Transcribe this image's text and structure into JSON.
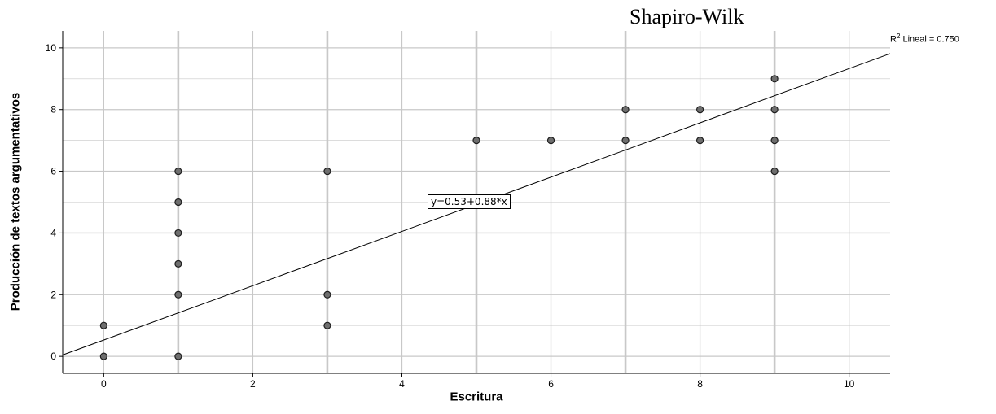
{
  "header_text": "Shapiro-Wilk",
  "r2_label": {
    "prefix": "R",
    "sup": "2",
    "suffix": " Lineal = 0.750"
  },
  "chart_data": {
    "type": "scatter",
    "title": "",
    "xlabel": "Escritura",
    "ylabel": "Producción de textos argumentativos",
    "xlim": [
      -0.55,
      10.55
    ],
    "ylim": [
      -0.55,
      10.55
    ],
    "x_ticks": [
      0,
      2,
      4,
      6,
      8,
      10
    ],
    "y_ticks": [
      0,
      2,
      4,
      6,
      8,
      10
    ],
    "x_gridlines": [
      0,
      1,
      2,
      3,
      4,
      5,
      6,
      7,
      8,
      9,
      10
    ],
    "y_gridlines": [
      0,
      1,
      2,
      3,
      4,
      5,
      6,
      7,
      8,
      9,
      10
    ],
    "grid": true,
    "points": [
      {
        "x": 0,
        "y": 0
      },
      {
        "x": 0,
        "y": 1
      },
      {
        "x": 1,
        "y": 0
      },
      {
        "x": 1,
        "y": 2
      },
      {
        "x": 1,
        "y": 3
      },
      {
        "x": 1,
        "y": 4
      },
      {
        "x": 1,
        "y": 5
      },
      {
        "x": 1,
        "y": 6
      },
      {
        "x": 3,
        "y": 1
      },
      {
        "x": 3,
        "y": 2
      },
      {
        "x": 3,
        "y": 6
      },
      {
        "x": 5,
        "y": 7
      },
      {
        "x": 6,
        "y": 7
      },
      {
        "x": 7,
        "y": 7
      },
      {
        "x": 7,
        "y": 8
      },
      {
        "x": 8,
        "y": 7
      },
      {
        "x": 8,
        "y": 8
      },
      {
        "x": 9,
        "y": 6
      },
      {
        "x": 9,
        "y": 7
      },
      {
        "x": 9,
        "y": 8
      },
      {
        "x": 9,
        "y": 9
      }
    ],
    "fit_line": {
      "intercept": 0.53,
      "slope": 0.88,
      "label": "y=0.53+0.88*x",
      "label_at": [
        5.0,
        5.0
      ]
    },
    "r_squared": 0.75,
    "colors": {
      "point_fill": "#6e6e6e",
      "point_stroke": "#1e1e1e",
      "grid": "#c8c8c8",
      "line": "#000000"
    }
  }
}
